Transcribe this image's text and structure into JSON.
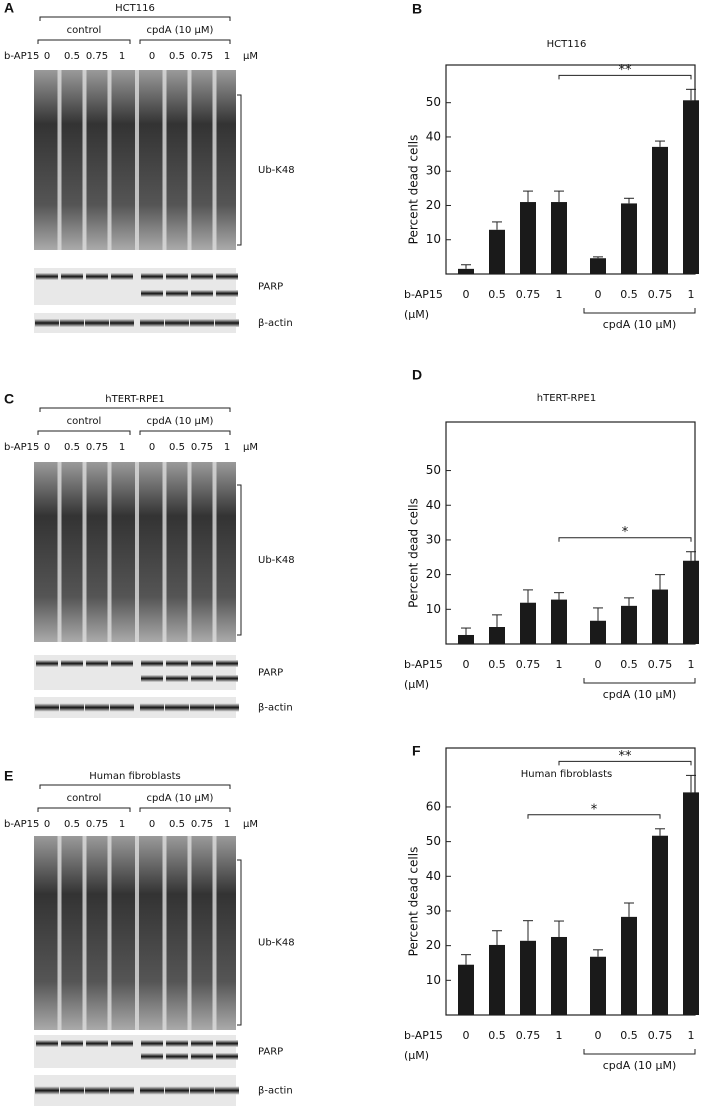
{
  "blots": [
    {
      "letter": "A",
      "title": "HCT116",
      "control_label": "control",
      "treatment_label": "cpdA (10 μM)",
      "drug_label": "b-AP15",
      "lanes": [
        "0",
        "0.5",
        "0.75",
        "1",
        "0",
        "0.5",
        "0.75",
        "1"
      ],
      "unit": "μM",
      "bands": [
        "Ub-K48",
        "PARP",
        "β-actin"
      ]
    },
    {
      "letter": "C",
      "title": "hTERT-RPE1",
      "control_label": "control",
      "treatment_label": "cpdA (10 μM)",
      "drug_label": "b-AP15",
      "lanes": [
        "0",
        "0.5",
        "0.75",
        "1",
        "0",
        "0.5",
        "0.75",
        "1"
      ],
      "unit": "μM",
      "bands": [
        "Ub-K48",
        "PARP",
        "β-actin"
      ]
    },
    {
      "letter": "E",
      "title": "Human fibroblasts",
      "control_label": "control",
      "treatment_label": "cpdA (10 μM)",
      "drug_label": "b-AP15",
      "lanes": [
        "0",
        "0.5",
        "0.75",
        "1",
        "0",
        "0.5",
        "0.75",
        "1"
      ],
      "unit": "μM",
      "bands": [
        "Ub-K48",
        "PARP",
        "β-actin"
      ]
    }
  ],
  "chart_data": [
    {
      "type": "bar",
      "panel": "B",
      "title": "HCT116",
      "y_label": "Percent dead cells",
      "x_label": "b-AP15",
      "x_unit": "(μM)",
      "group_label": "cpdA (10 μM)",
      "categories": [
        "0",
        "0.5",
        "0.75",
        "1",
        "0",
        "0.5",
        "0.75",
        "1"
      ],
      "values": [
        1.5,
        12.9,
        21,
        21,
        4.6,
        20.6,
        37.1,
        50.7
      ],
      "errors": [
        1.2,
        2.3,
        3.2,
        3.2,
        0.4,
        1.5,
        1.7,
        3.2
      ],
      "color": "#1a1a1a",
      "ylim": [
        0,
        61
      ],
      "yticks": [
        10,
        20,
        30,
        40,
        50
      ],
      "annotations": [
        {
          "text": "**",
          "from": 3,
          "to": 7
        }
      ]
    },
    {
      "type": "bar",
      "panel": "D",
      "title": "hTERT-RPE1",
      "y_label": "Percent dead cells",
      "x_label": "b-AP15",
      "x_unit": "(μM)",
      "group_label": "cpdA (10 μM)",
      "categories": [
        "0",
        "0.5",
        "0.75",
        "1",
        "0",
        "0.5",
        "0.75",
        "1"
      ],
      "values": [
        2.6,
        4.9,
        11.9,
        12.8,
        6.7,
        11,
        15.7,
        24
      ],
      "errors": [
        2,
        3.5,
        3.7,
        2,
        3.7,
        2.3,
        4.3,
        2.6
      ],
      "color": "#1a1a1a",
      "ylim": [
        0,
        64
      ],
      "yticks": [
        10,
        20,
        30,
        40,
        50
      ],
      "annotations": [
        {
          "text": "*",
          "from": 3,
          "to": 7
        }
      ]
    },
    {
      "type": "bar",
      "panel": "F",
      "title": "Human fibroblasts",
      "y_label": "Percent dead cells",
      "x_label": "b-AP15",
      "x_unit": "(μM)",
      "group_label": "cpdA (10 μM)",
      "categories": [
        "0",
        "0.5",
        "0.75",
        "1",
        "0",
        "0.5",
        "0.75",
        "1"
      ],
      "values": [
        14.5,
        20.2,
        21.4,
        22.5,
        16.8,
        28.3,
        51.7,
        64.2
      ],
      "errors": [
        2.9,
        4.1,
        5.8,
        4.6,
        2,
        4,
        2,
        4.9
      ],
      "color": "#1a1a1a",
      "ylim": [
        0,
        77
      ],
      "yticks": [
        10,
        20,
        30,
        40,
        50,
        60
      ],
      "annotations": [
        {
          "text": "**",
          "from": 3,
          "to": 7
        },
        {
          "text": "*",
          "from": 2,
          "to": 6
        }
      ]
    }
  ]
}
